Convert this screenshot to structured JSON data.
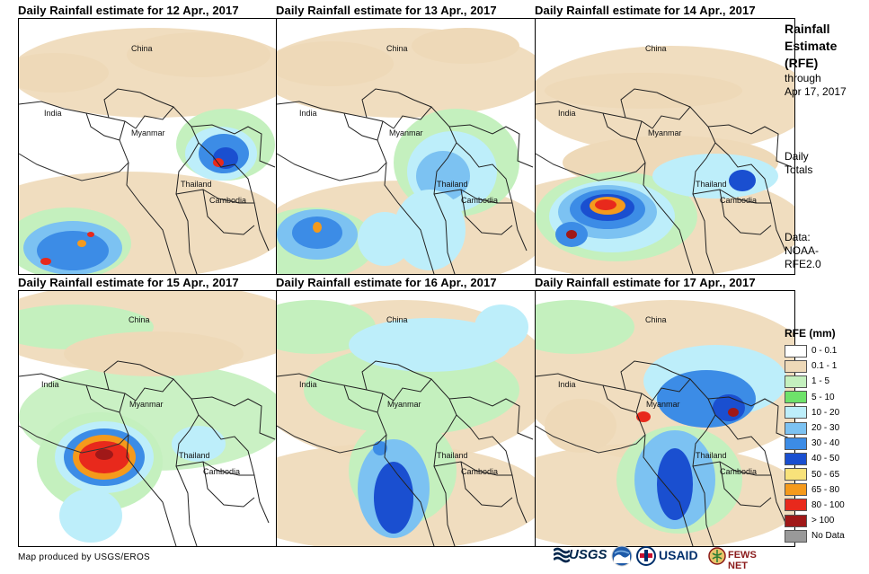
{
  "panels": [
    {
      "title": "Daily Rainfall estimate for 12 Apr., 2017"
    },
    {
      "title": "Daily Rainfall estimate for 13 Apr., 2017"
    },
    {
      "title": "Daily Rainfall estimate for 14 Apr., 2017"
    },
    {
      "title": "Daily Rainfall estimate for 15 Apr., 2017"
    },
    {
      "title": "Daily Rainfall estimate for 16 Apr., 2017"
    },
    {
      "title": "Daily Rainfall estimate for 17 Apr., 2017"
    }
  ],
  "places": {
    "china": "China",
    "india": "India",
    "myanmar": "Myanmar",
    "thailand": "Thailand",
    "cambodia": "Cambodia"
  },
  "sidebar": {
    "title_line1": "Rainfall",
    "title_line2": "Estimate",
    "title_line3": "(RFE)",
    "through_label": "through",
    "through_date": "Apr 17, 2017",
    "daily_line1": "Daily",
    "daily_line2": "Totals",
    "data_line1": "Data:",
    "data_line2": "NOAA-",
    "data_line3": "RFE2.0"
  },
  "legend": {
    "title": "RFE (mm)",
    "items": [
      {
        "label": "0 - 0.1",
        "color": "#FFFFFF"
      },
      {
        "label": "0.1 - 1",
        "color": "#EED9B8"
      },
      {
        "label": "1 - 5",
        "color": "#C4F0BE"
      },
      {
        "label": "5 - 10",
        "color": "#6EE26A"
      },
      {
        "label": "10 - 20",
        "color": "#BDEEFA"
      },
      {
        "label": "20 - 30",
        "color": "#7CC2F2"
      },
      {
        "label": "30 - 40",
        "color": "#3C8CE6"
      },
      {
        "label": "40 - 50",
        "color": "#1A4FD0"
      },
      {
        "label": "50 - 65",
        "color": "#F8E27A"
      },
      {
        "label": "65 - 80",
        "color": "#F59A1C"
      },
      {
        "label": "80 - 100",
        "color": "#E8291C"
      },
      {
        "label": "> 100",
        "color": "#A01818"
      },
      {
        "label": "No Data",
        "color": "#999999"
      }
    ]
  },
  "credit": "Map produced by USGS/EROS",
  "logos": {
    "usgs": "USGS",
    "usaid": "USAID",
    "fewsnet": "FEWS NET"
  }
}
